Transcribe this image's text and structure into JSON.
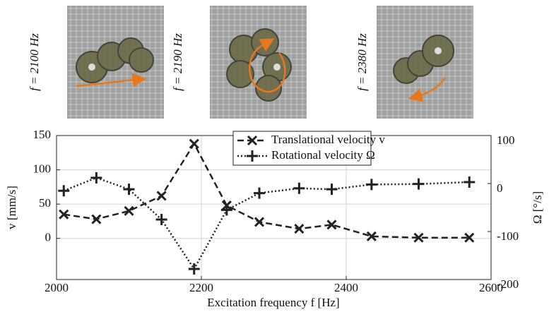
{
  "panels": [
    {
      "label": "f = 2100 Hz"
    },
    {
      "label": "f = 2190 Hz"
    },
    {
      "label": "f = 2380 Hz"
    }
  ],
  "chart_data": {
    "type": "line",
    "x_label": "Excitation frequency f [Hz]",
    "y_label": "v  [mm/s]",
    "y2_label": "Ω  [°/s]",
    "x": [
      2010,
      2055,
      2100,
      2145,
      2190,
      2235,
      2280,
      2335,
      2380,
      2435,
      2500,
      2570
    ],
    "series": [
      {
        "name": "Translational velocity v",
        "color": "#222222",
        "linestyle": "dashed",
        "marker": "x",
        "values": [
          35,
          28,
          40,
          62,
          138,
          48,
          24,
          14,
          20,
          3,
          1,
          1
        ]
      },
      {
        "name": "Rotational velocity Ω",
        "color": "#222222",
        "linestyle": "dotted",
        "marker": "+",
        "axis": "y2",
        "values": [
          -15,
          12,
          -12,
          -75,
          -178,
          -55,
          -20,
          -10,
          -12,
          -2,
          -1,
          3
        ]
      }
    ],
    "xlim": [
      2000,
      2600
    ],
    "xticks": [
      2000,
      2200,
      2400,
      2600
    ],
    "ylim": [
      -60,
      150
    ],
    "yticks": [
      0,
      50,
      100,
      150
    ],
    "y2lim": [
      -200,
      100
    ],
    "y2ticks": [
      -200,
      -100,
      0,
      100
    ],
    "grid": true,
    "legend": "top"
  }
}
